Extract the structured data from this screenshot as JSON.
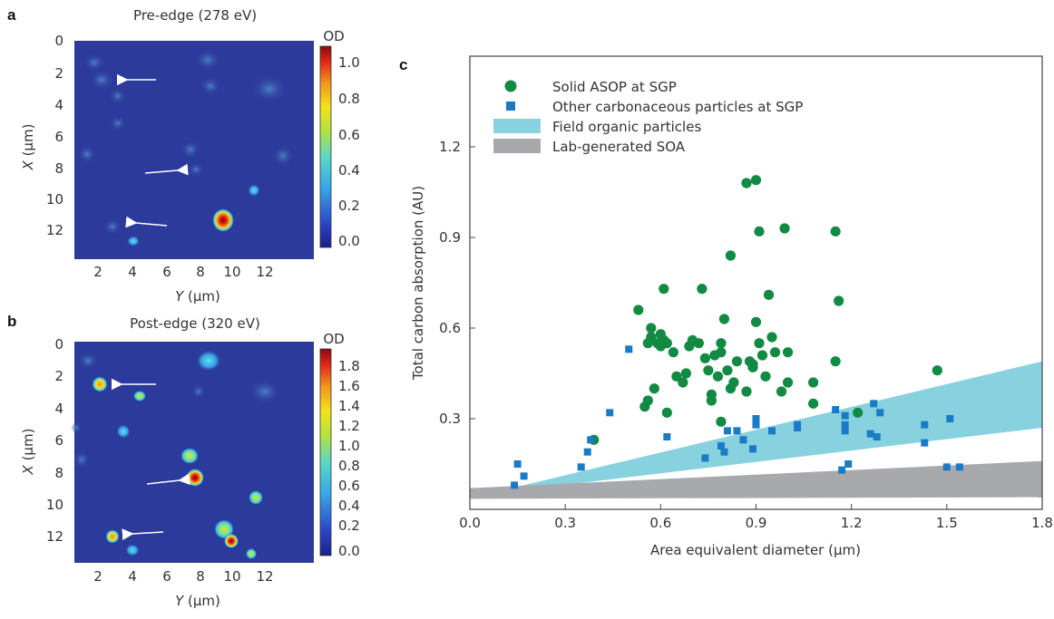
{
  "panels": {
    "a": {
      "label": "a",
      "title": "Pre-edge (278 eV)",
      "xlabel_italic": "Y",
      "xlabel_unit": " (μm)",
      "ylabel_italic": "X",
      "ylabel_unit": " (μm)",
      "x_ticks": [
        "2",
        "4",
        "6",
        "8",
        "10",
        "12"
      ],
      "y_ticks": [
        "0",
        "2",
        "4",
        "6",
        "8",
        "10",
        "12"
      ],
      "colorbar_label": "OD",
      "colorbar_ticks": [
        "1.0",
        "0.8",
        "0.6",
        "0.4",
        "0.2",
        "0.0"
      ],
      "background_color": "#2c3a9c"
    },
    "b": {
      "label": "b",
      "title": "Post-edge (320 eV)",
      "xlabel_italic": "Y",
      "xlabel_unit": " (μm)",
      "ylabel_italic": "X",
      "ylabel_unit": " (μm)",
      "x_ticks": [
        "2",
        "4",
        "6",
        "8",
        "10",
        "12"
      ],
      "y_ticks": [
        "0",
        "2",
        "4",
        "6",
        "8",
        "10",
        "12"
      ],
      "colorbar_label": "OD",
      "colorbar_ticks": [
        "1.8",
        "1.6",
        "1.4",
        "1.2",
        "1.0",
        "0.8",
        "0.6",
        "0.4",
        "0.2",
        "0.0"
      ],
      "background_color": "#2c3a9c"
    }
  },
  "chart_data": {
    "type": "scatter",
    "panel_label": "c",
    "xlabel": "Area equivalent diameter (μm)",
    "ylabel": "Total carbon absorption (AU)",
    "xlim": [
      0,
      1.8
    ],
    "ylim": [
      0,
      1.5
    ],
    "x_ticks": [
      "0.0",
      "0.3",
      "0.6",
      "0.9",
      "1.2",
      "1.5",
      "1.8"
    ],
    "y_ticks": [
      "0.3",
      "0.6",
      "0.9",
      "1.2"
    ],
    "grid": false,
    "legend_position": "top-left",
    "colors": {
      "solid_asop": "#118a43",
      "other_carbonaceous": "#1b7ac6",
      "field_organic": "#87d2de",
      "lab_soa": "#a8a9ac"
    },
    "legend": [
      {
        "key": "solid_asop",
        "label": "Solid ASOP at SGP",
        "marker": "circle"
      },
      {
        "key": "other_carbonaceous",
        "label": "Other carbonaceous particles at SGP",
        "marker": "square"
      },
      {
        "key": "field_organic",
        "label": "Field organic particles",
        "marker": "band"
      },
      {
        "key": "lab_soa",
        "label": "Lab-generated SOA",
        "marker": "band"
      }
    ],
    "bands": [
      {
        "key": "field_organic",
        "x": [
          0.05,
          1.8
        ],
        "lower": [
          0.05,
          0.27
        ],
        "upper": [
          0.05,
          0.49
        ]
      },
      {
        "key": "lab_soa",
        "x": [
          0.0,
          1.8
        ],
        "lower": [
          0.035,
          0.04
        ],
        "upper": [
          0.07,
          0.16
        ]
      }
    ],
    "series": [
      {
        "key": "solid_asop",
        "name": "Solid ASOP at SGP",
        "marker": "circle",
        "points": [
          [
            0.39,
            0.23
          ],
          [
            0.53,
            0.66
          ],
          [
            0.55,
            0.34
          ],
          [
            0.56,
            0.36
          ],
          [
            0.56,
            0.55
          ],
          [
            0.57,
            0.6
          ],
          [
            0.57,
            0.57
          ],
          [
            0.58,
            0.4
          ],
          [
            0.59,
            0.55
          ],
          [
            0.6,
            0.58
          ],
          [
            0.6,
            0.54
          ],
          [
            0.61,
            0.56
          ],
          [
            0.61,
            0.73
          ],
          [
            0.62,
            0.55
          ],
          [
            0.62,
            0.32
          ],
          [
            0.64,
            0.52
          ],
          [
            0.65,
            0.44
          ],
          [
            0.67,
            0.42
          ],
          [
            0.68,
            0.45
          ],
          [
            0.69,
            0.54
          ],
          [
            0.7,
            0.56
          ],
          [
            0.72,
            0.55
          ],
          [
            0.73,
            0.73
          ],
          [
            0.74,
            0.5
          ],
          [
            0.75,
            0.46
          ],
          [
            0.76,
            0.38
          ],
          [
            0.76,
            0.36
          ],
          [
            0.77,
            0.51
          ],
          [
            0.78,
            0.44
          ],
          [
            0.79,
            0.29
          ],
          [
            0.79,
            0.55
          ],
          [
            0.79,
            0.52
          ],
          [
            0.8,
            0.63
          ],
          [
            0.81,
            0.46
          ],
          [
            0.82,
            0.4
          ],
          [
            0.82,
            0.84
          ],
          [
            0.83,
            0.42
          ],
          [
            0.84,
            0.49
          ],
          [
            0.87,
            1.08
          ],
          [
            0.87,
            0.39
          ],
          [
            0.88,
            0.49
          ],
          [
            0.89,
            0.48
          ],
          [
            0.89,
            0.47
          ],
          [
            0.9,
            1.09
          ],
          [
            0.9,
            0.62
          ],
          [
            0.91,
            0.55
          ],
          [
            0.91,
            0.92
          ],
          [
            0.92,
            0.51
          ],
          [
            0.93,
            0.44
          ],
          [
            0.94,
            0.71
          ],
          [
            0.95,
            0.57
          ],
          [
            0.96,
            0.52
          ],
          [
            0.98,
            0.39
          ],
          [
            0.99,
            0.93
          ],
          [
            1.0,
            0.52
          ],
          [
            1.0,
            0.42
          ],
          [
            1.08,
            0.42
          ],
          [
            1.08,
            0.35
          ],
          [
            1.15,
            0.49
          ],
          [
            1.15,
            0.92
          ],
          [
            1.16,
            0.69
          ],
          [
            1.22,
            0.32
          ],
          [
            1.47,
            0.46
          ]
        ]
      },
      {
        "key": "other_carbonaceous",
        "name": "Other carbonaceous particles at SGP",
        "marker": "square",
        "points": [
          [
            0.14,
            0.08
          ],
          [
            0.15,
            0.15
          ],
          [
            0.17,
            0.11
          ],
          [
            0.35,
            0.14
          ],
          [
            0.37,
            0.19
          ],
          [
            0.38,
            0.23
          ],
          [
            0.44,
            0.32
          ],
          [
            0.5,
            0.53
          ],
          [
            0.62,
            0.24
          ],
          [
            0.74,
            0.17
          ],
          [
            0.79,
            0.21
          ],
          [
            0.8,
            0.19
          ],
          [
            0.81,
            0.26
          ],
          [
            0.84,
            0.26
          ],
          [
            0.86,
            0.23
          ],
          [
            0.89,
            0.2
          ],
          [
            0.9,
            0.28
          ],
          [
            0.9,
            0.3
          ],
          [
            0.95,
            0.26
          ],
          [
            1.03,
            0.27
          ],
          [
            1.03,
            0.28
          ],
          [
            1.15,
            0.33
          ],
          [
            1.17,
            0.13
          ],
          [
            1.18,
            0.26
          ],
          [
            1.18,
            0.28
          ],
          [
            1.18,
            0.31
          ],
          [
            1.19,
            0.15
          ],
          [
            1.26,
            0.25
          ],
          [
            1.27,
            0.35
          ],
          [
            1.28,
            0.24
          ],
          [
            1.29,
            0.32
          ],
          [
            1.43,
            0.28
          ],
          [
            1.43,
            0.22
          ],
          [
            1.5,
            0.14
          ],
          [
            1.51,
            0.3
          ],
          [
            1.54,
            0.14
          ]
        ]
      }
    ]
  }
}
